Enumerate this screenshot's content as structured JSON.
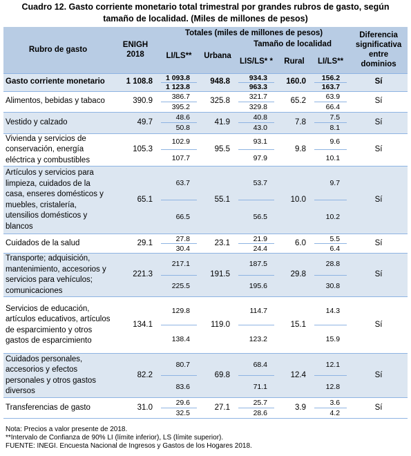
{
  "title": "Cuadro 12. Gasto corriente monetario total trimestral por grandes rubros de gasto, según tamaño de localidad. (Miles de millones de pesos)",
  "header": {
    "rubro": "Rubro de gasto",
    "enigh": "ENIGH 2018",
    "totales": "Totales (miles de millones de pesos)",
    "tamano": "Tamaño de localidad",
    "lils1": "LI/LS**",
    "urbana": "Urbana",
    "lils2": "LIS/LS* *",
    "rural": "Rural",
    "lils3": "LI/LS**",
    "diferencia": "Diferencia significativa entre dominios"
  },
  "table": {
    "rows": [
      [
        "Gasto corriente monetario",
        "1 108.8",
        "1 093.8",
        "1 123.8",
        "948.8",
        "934.3",
        "963.3",
        "160.0",
        "156.2",
        "163.7",
        "Sí"
      ],
      [
        "Alimentos, bebidas y tabaco",
        "390.9",
        "386.7",
        "395.2",
        "325.8",
        "321.7",
        "329.8",
        "65.2",
        "63.9",
        "66.4",
        "Sí"
      ],
      [
        "Vestido y calzado",
        "49.7",
        "48.6",
        "50.8",
        "41.9",
        "40.8",
        "43.0",
        "7.8",
        "7.5",
        "8.1",
        "Sí"
      ],
      [
        "Vivienda y servicios de conservación, energía eléctrica y combustibles",
        "105.3",
        "102.9",
        "107.7",
        "95.5",
        "93.1",
        "97.9",
        "9.8",
        "9.6",
        "10.1",
        "Sí"
      ],
      [
        "Artículos y servicios para limpieza, cuidados de la casa, enseres domésticos y muebles, cristalería, utensilios domésticos y blancos",
        "65.1",
        "63.7",
        "66.5",
        "55.1",
        "53.7",
        "56.5",
        "10.0",
        "9.7",
        "10.2",
        "Sí"
      ],
      [
        "Cuidados de la salud",
        "29.1",
        "27.8",
        "30.4",
        "23.1",
        "21.9",
        "24.4",
        "6.0",
        "5.5",
        "6.4",
        "Sí"
      ],
      [
        "Transporte; adquisición, mantenimiento, accesorios y servicios para vehículos; comunicaciones",
        "221.3",
        "217.1",
        "225.5",
        "191.5",
        "187.5",
        "195.6",
        "29.8",
        "28.8",
        "30.8",
        "Sí"
      ],
      [
        "Servicios de educación, artículos educativos, artículos de esparcimiento y otros gastos de esparcimiento",
        "134.1",
        "129.8",
        "138.4",
        "119.0",
        "114.7",
        "123.2",
        "15.1",
        "14.3",
        "15.9",
        "Sí"
      ],
      [
        "Cuidados personales, accesorios y efectos personales y otros gastos diversos",
        "82.2",
        "80.7",
        "83.6",
        "69.8",
        "68.4",
        "71.1",
        "12.4",
        "12.1",
        "12.8",
        "Sí"
      ],
      [
        "Transferencias de gasto",
        "31.0",
        "29.6",
        "32.5",
        "27.1",
        "25.7",
        "28.6",
        "3.9",
        "3.6",
        "4.2",
        "Sí"
      ]
    ]
  },
  "notes": [
    "Nota: Precios a valor presente de 2018.",
    "**Intervalo de Confianza de 90% LI (límite inferior), LS (límite superior).",
    "FUENTE: INEGI. Encuesta Nacional de Ingresos y Gastos de los Hogares 2018."
  ]
}
